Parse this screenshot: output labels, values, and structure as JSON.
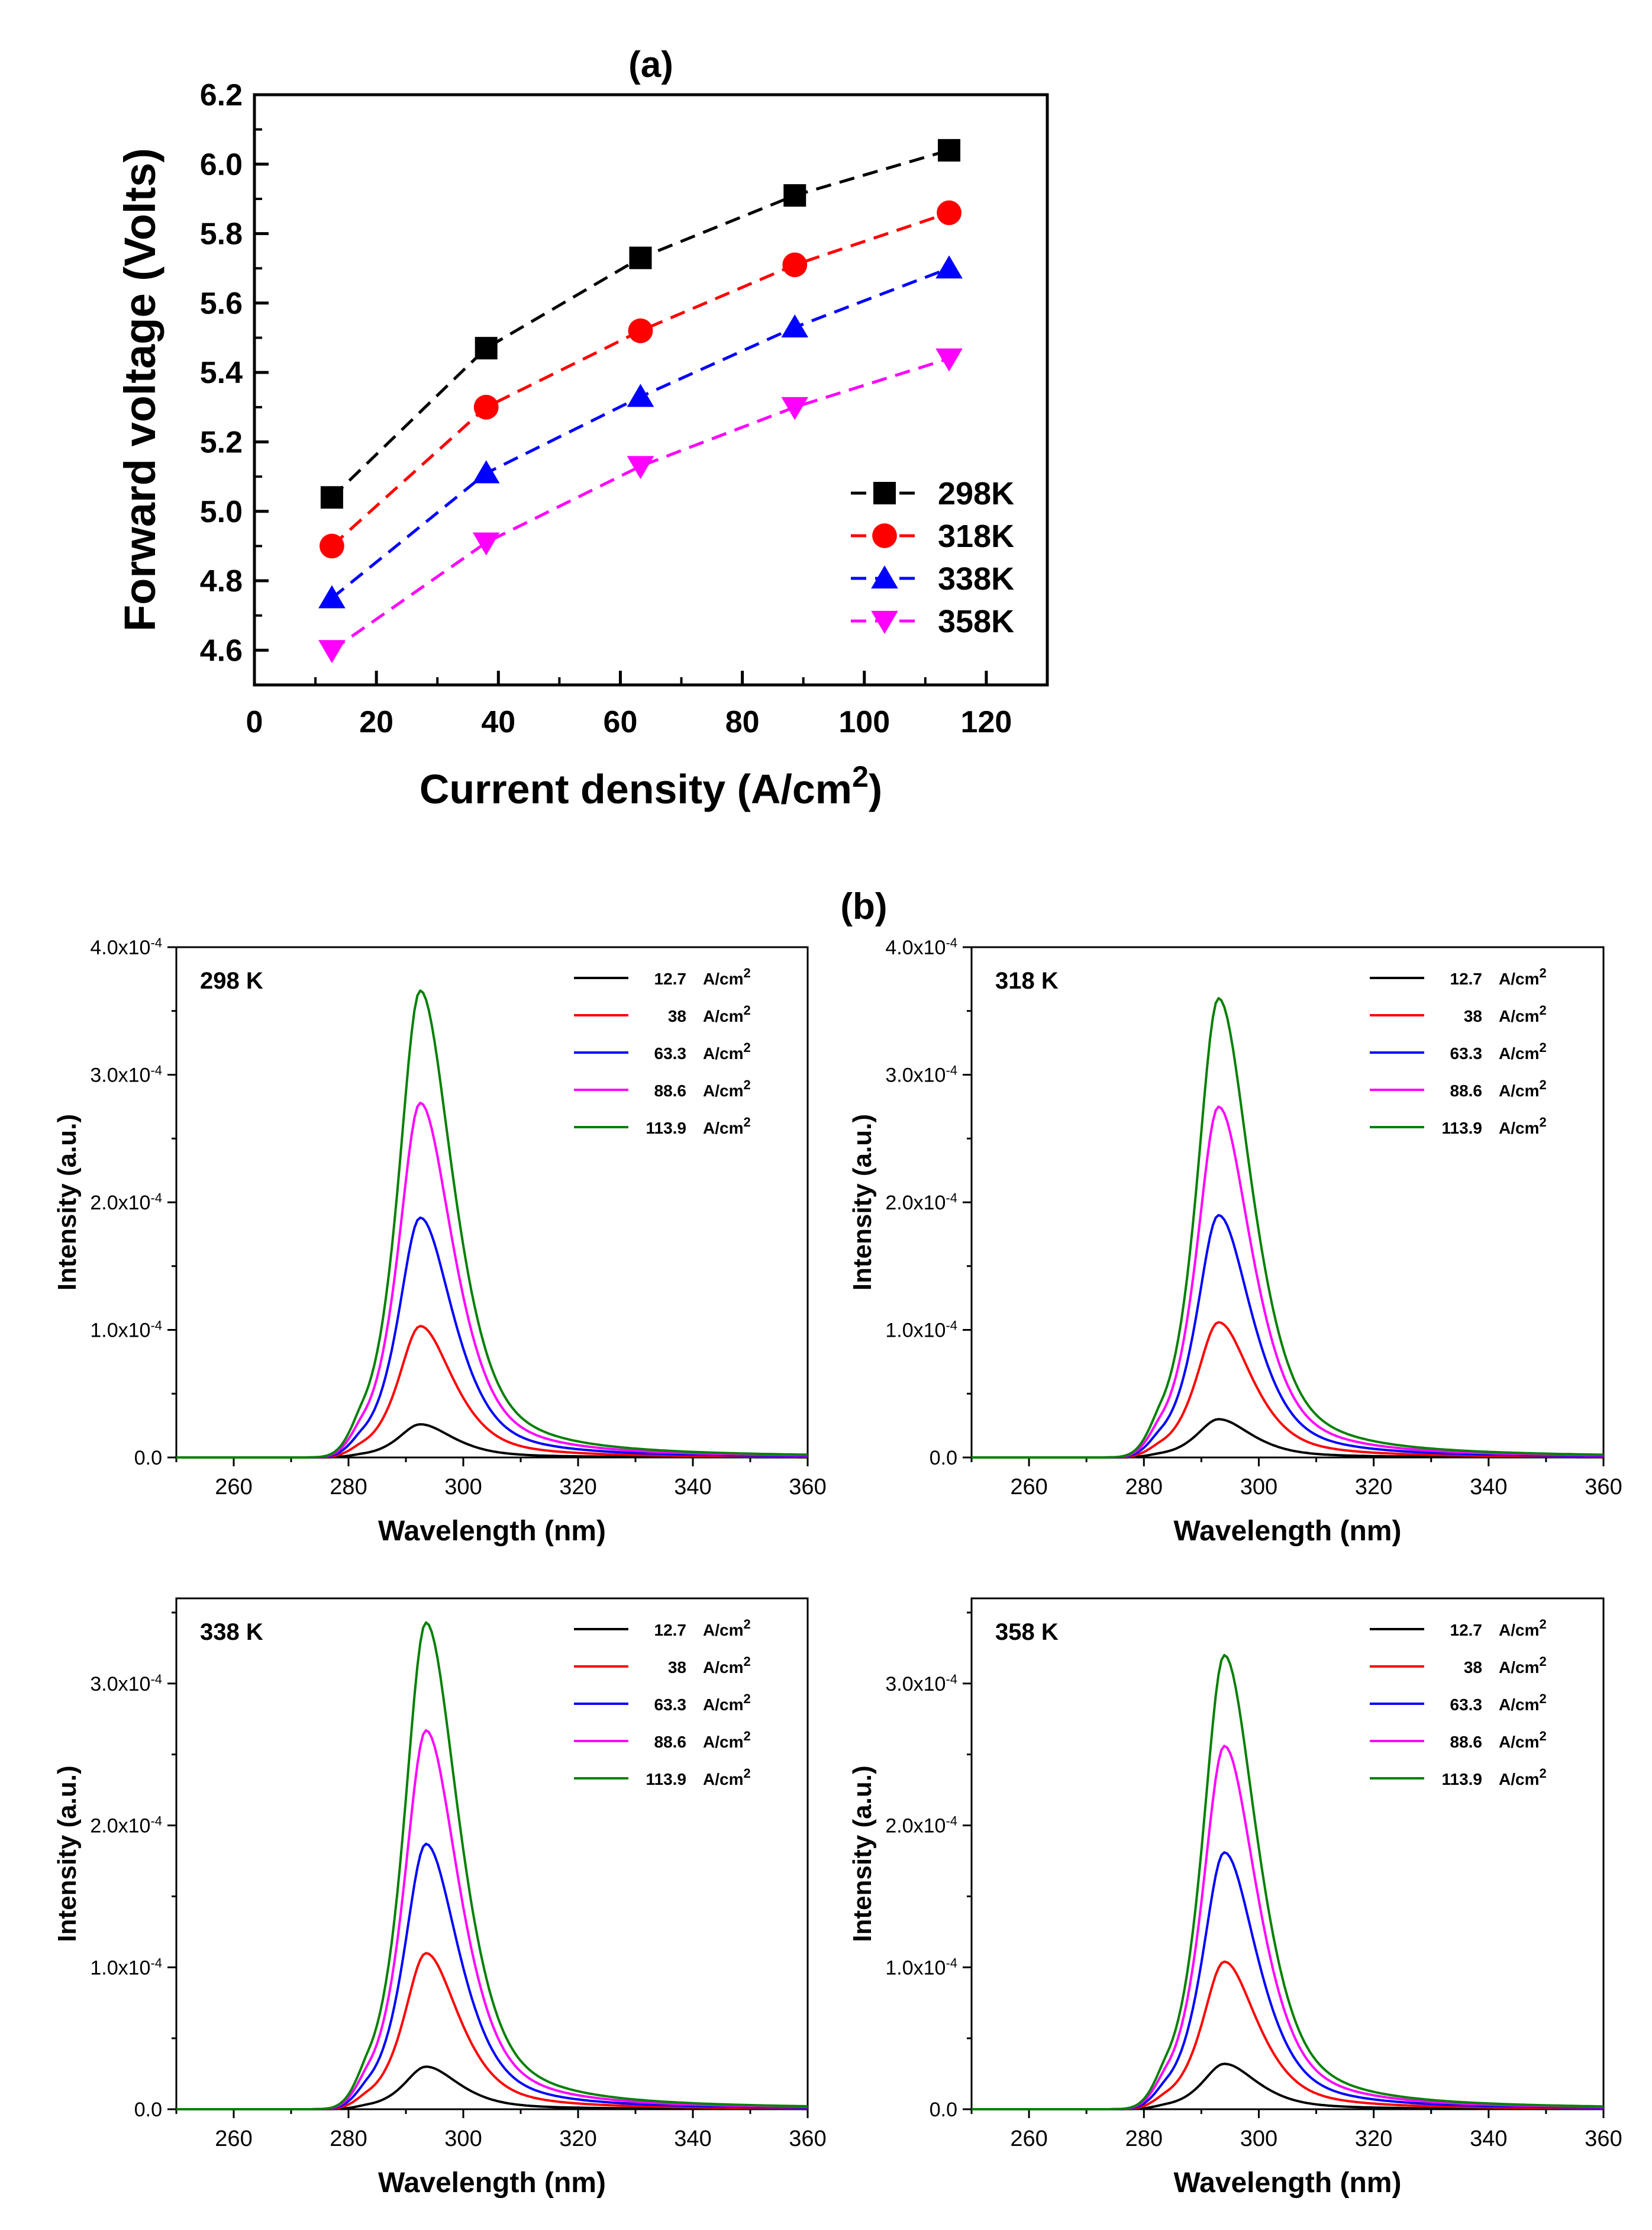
{
  "chart_data": [
    {
      "id": "a",
      "type": "line",
      "panel_label": "(a)",
      "title": "",
      "xlabel_main": "Current density (A/cm",
      "xlabel_sup": "2",
      "xlabel_tail": ")",
      "ylabel": "Forward voltage (Volts)",
      "xlim": [
        0,
        130
      ],
      "ylim": [
        4.5,
        6.2
      ],
      "xticks": [
        "0",
        "20",
        "40",
        "60",
        "80",
        "100",
        "120"
      ],
      "xtick_values": [
        0,
        20,
        40,
        60,
        80,
        100,
        120
      ],
      "yticks": [
        "4.6",
        "4.8",
        "5.0",
        "5.2",
        "5.4",
        "5.6",
        "5.8",
        "6.0",
        "6.2"
      ],
      "ytick_values": [
        4.6,
        4.8,
        5.0,
        5.2,
        5.4,
        5.6,
        5.8,
        6.0,
        6.2
      ],
      "legend_position": "bottom-right",
      "x": [
        12.7,
        38,
        63.3,
        88.6,
        113.9
      ],
      "series": [
        {
          "name": "298K",
          "color": "#000000",
          "marker": "square",
          "values": [
            5.04,
            5.47,
            5.73,
            5.91,
            6.04
          ]
        },
        {
          "name": "318K",
          "color": "#ff0000",
          "marker": "circle",
          "values": [
            4.9,
            5.3,
            5.52,
            5.71,
            5.86
          ]
        },
        {
          "name": "338K",
          "color": "#0000ff",
          "marker": "triangle-up",
          "values": [
            4.75,
            5.11,
            5.33,
            5.53,
            5.7
          ]
        },
        {
          "name": "358K",
          "color": "#ff00ff",
          "marker": "triangle-down",
          "values": [
            4.6,
            4.91,
            5.13,
            5.3,
            5.44
          ]
        }
      ]
    },
    {
      "id": "b1",
      "type": "line",
      "panel_label": "(b)",
      "title": "298 K",
      "xlabel": "Wavelength (nm)",
      "ylabel": "Intensity (a.u.)",
      "xlim": [
        250,
        360
      ],
      "ylim": [
        0,
        0.0004
      ],
      "xticks": [
        "260",
        "280",
        "300",
        "320",
        "340",
        "360"
      ],
      "xtick_values": [
        260,
        280,
        300,
        320,
        340,
        360
      ],
      "yticks": [
        {
          "value": 0,
          "mant": "0.0",
          "exp": ""
        },
        {
          "value": 0.0001,
          "mant": "1.0x10",
          "exp": "-4"
        },
        {
          "value": 0.0002,
          "mant": "2.0x10",
          "exp": "-4"
        },
        {
          "value": 0.0003,
          "mant": "3.0x10",
          "exp": "-4"
        },
        {
          "value": 0.0004,
          "mant": "4.0x10",
          "exp": "-4"
        }
      ],
      "legend_position": "top-right",
      "peak_nm": 292.5,
      "series": [
        {
          "name": "12.7",
          "unit": "A/cm",
          "unit_sup": "2",
          "color": "#000000",
          "peak": 2.6e-05
        },
        {
          "name": "38",
          "unit": "A/cm",
          "unit_sup": "2",
          "color": "#ff0000",
          "peak": 0.000103
        },
        {
          "name": "63.3",
          "unit": "A/cm",
          "unit_sup": "2",
          "color": "#0000ff",
          "peak": 0.000188
        },
        {
          "name": "88.6",
          "unit": "A/cm",
          "unit_sup": "2",
          "color": "#ff00ff",
          "peak": 0.000278
        },
        {
          "name": "113.9",
          "unit": "A/cm",
          "unit_sup": "2",
          "color": "#008000",
          "peak": 0.000366
        }
      ]
    },
    {
      "id": "b2",
      "type": "line",
      "title": "318 K",
      "xlabel": "Wavelength (nm)",
      "ylabel": "Intensity (a.u.)",
      "xlim": [
        250,
        360
      ],
      "ylim": [
        0,
        0.0004
      ],
      "xticks": [
        "260",
        "280",
        "300",
        "320",
        "340",
        "360"
      ],
      "xtick_values": [
        260,
        280,
        300,
        320,
        340,
        360
      ],
      "yticks": [
        {
          "value": 0,
          "mant": "0.0",
          "exp": ""
        },
        {
          "value": 0.0001,
          "mant": "1.0x10",
          "exp": "-4"
        },
        {
          "value": 0.0002,
          "mant": "2.0x10",
          "exp": "-4"
        },
        {
          "value": 0.0003,
          "mant": "3.0x10",
          "exp": "-4"
        },
        {
          "value": 0.0004,
          "mant": "4.0x10",
          "exp": "-4"
        }
      ],
      "legend_position": "top-right",
      "peak_nm": 293,
      "series": [
        {
          "name": "12.7",
          "unit": "A/cm",
          "unit_sup": "2",
          "color": "#000000",
          "peak": 3e-05
        },
        {
          "name": "38",
          "unit": "A/cm",
          "unit_sup": "2",
          "color": "#ff0000",
          "peak": 0.000106
        },
        {
          "name": "63.3",
          "unit": "A/cm",
          "unit_sup": "2",
          "color": "#0000ff",
          "peak": 0.00019
        },
        {
          "name": "88.6",
          "unit": "A/cm",
          "unit_sup": "2",
          "color": "#ff00ff",
          "peak": 0.000275
        },
        {
          "name": "113.9",
          "unit": "A/cm",
          "unit_sup": "2",
          "color": "#008000",
          "peak": 0.00036
        }
      ]
    },
    {
      "id": "b3",
      "type": "line",
      "title": "338 K",
      "xlabel": "Wavelength (nm)",
      "ylabel": "Intensity (a.u.)",
      "xlim": [
        250,
        360
      ],
      "ylim": [
        0,
        0.00036
      ],
      "xticks": [
        "260",
        "280",
        "300",
        "320",
        "340",
        "360"
      ],
      "xtick_values": [
        260,
        280,
        300,
        320,
        340,
        360
      ],
      "yticks": [
        {
          "value": 0,
          "mant": "0.0",
          "exp": ""
        },
        {
          "value": 0.0001,
          "mant": "1.0x10",
          "exp": "-4"
        },
        {
          "value": 0.0002,
          "mant": "2.0x10",
          "exp": "-4"
        },
        {
          "value": 0.0003,
          "mant": "3.0x10",
          "exp": "-4"
        }
      ],
      "legend_position": "top-right",
      "peak_nm": 293.5,
      "series": [
        {
          "name": "12.7",
          "unit": "A/cm",
          "unit_sup": "2",
          "color": "#000000",
          "peak": 3e-05
        },
        {
          "name": "38",
          "unit": "A/cm",
          "unit_sup": "2",
          "color": "#ff0000",
          "peak": 0.00011
        },
        {
          "name": "63.3",
          "unit": "A/cm",
          "unit_sup": "2",
          "color": "#0000ff",
          "peak": 0.000187
        },
        {
          "name": "88.6",
          "unit": "A/cm",
          "unit_sup": "2",
          "color": "#ff00ff",
          "peak": 0.000267
        },
        {
          "name": "113.9",
          "unit": "A/cm",
          "unit_sup": "2",
          "color": "#008000",
          "peak": 0.000343
        }
      ]
    },
    {
      "id": "b4",
      "type": "line",
      "title": "358 K",
      "xlabel": "Wavelength (nm)",
      "ylabel": "Intensity (a.u.)",
      "xlim": [
        250,
        360
      ],
      "ylim": [
        0,
        0.00036
      ],
      "xticks": [
        "260",
        "280",
        "300",
        "320",
        "340",
        "360"
      ],
      "xtick_values": [
        260,
        280,
        300,
        320,
        340,
        360
      ],
      "yticks": [
        {
          "value": 0,
          "mant": "0.0",
          "exp": ""
        },
        {
          "value": 0.0001,
          "mant": "1.0x10",
          "exp": "-4"
        },
        {
          "value": 0.0002,
          "mant": "2.0x10",
          "exp": "-4"
        },
        {
          "value": 0.0003,
          "mant": "3.0x10",
          "exp": "-4"
        }
      ],
      "legend_position": "top-right",
      "peak_nm": 294,
      "series": [
        {
          "name": "12.7",
          "unit": "A/cm",
          "unit_sup": "2",
          "color": "#000000",
          "peak": 3.2e-05
        },
        {
          "name": "38",
          "unit": "A/cm",
          "unit_sup": "2",
          "color": "#ff0000",
          "peak": 0.000104
        },
        {
          "name": "63.3",
          "unit": "A/cm",
          "unit_sup": "2",
          "color": "#0000ff",
          "peak": 0.000181
        },
        {
          "name": "88.6",
          "unit": "A/cm",
          "unit_sup": "2",
          "color": "#ff00ff",
          "peak": 0.000256
        },
        {
          "name": "113.9",
          "unit": "A/cm",
          "unit_sup": "2",
          "color": "#008000",
          "peak": 0.00032
        }
      ]
    }
  ]
}
